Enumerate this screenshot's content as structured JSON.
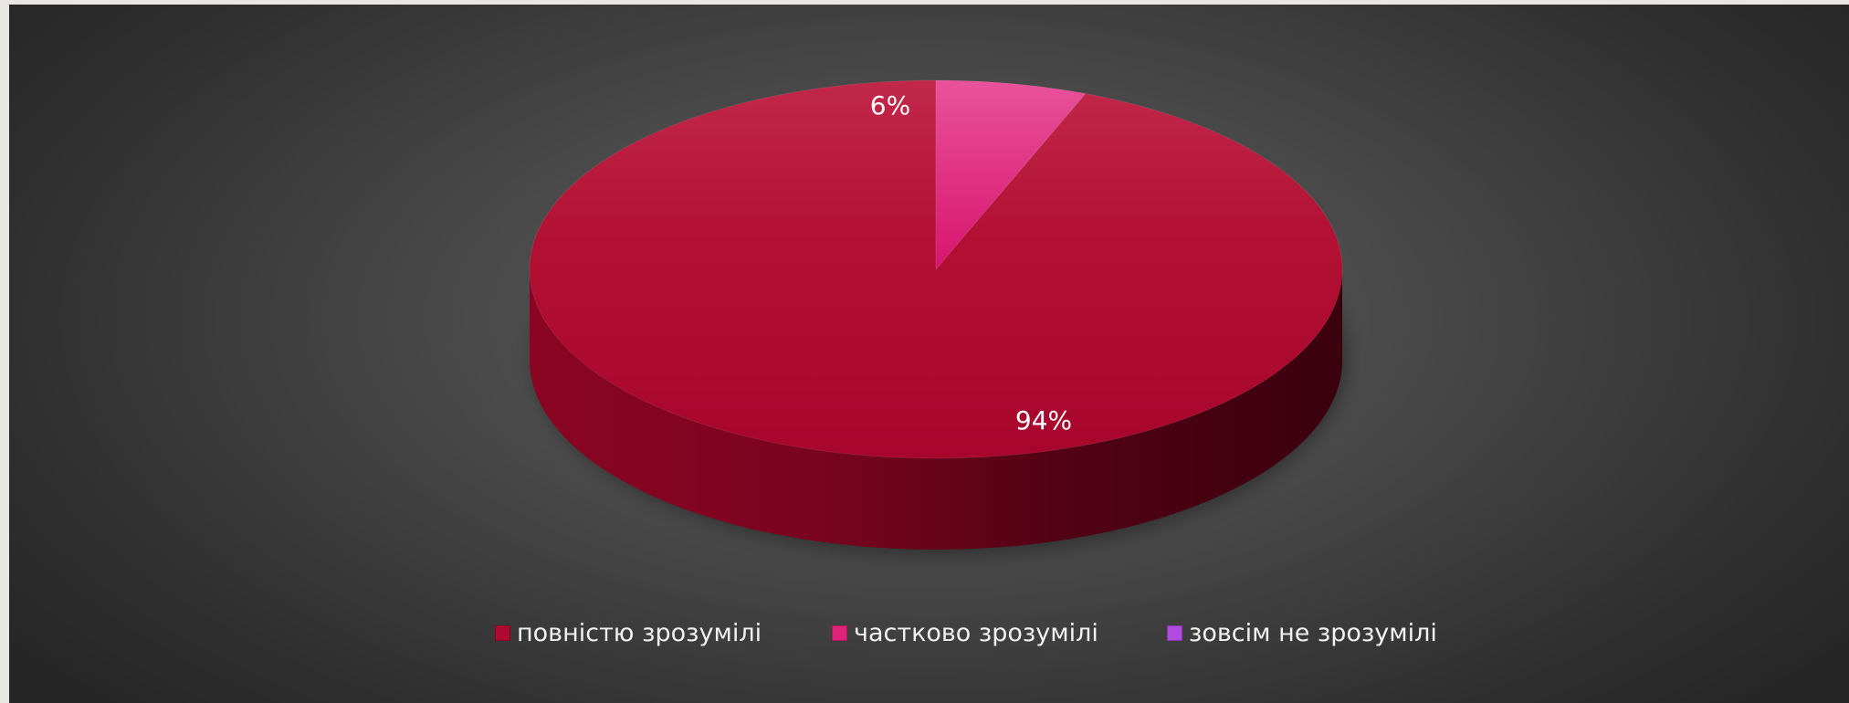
{
  "chart_data": {
    "type": "pie",
    "style": "3d",
    "title": "",
    "categories": [
      "повністю зрозумілі",
      "частково зрозумілі",
      "зовсім не зрозумілі"
    ],
    "values": [
      94,
      6,
      0
    ],
    "data_labels": [
      "94%",
      "6%",
      ""
    ],
    "colors": [
      "#b0092f",
      "#e0237a",
      "#b24be0"
    ],
    "legend_position": "bottom"
  },
  "legend": {
    "items": [
      {
        "label": "повністю зрозумілі",
        "color": "#b0092f"
      },
      {
        "label": "частково зрозумілі",
        "color": "#e0237a"
      },
      {
        "label": "зовсім не зрозумілі",
        "color": "#b24be0"
      }
    ]
  }
}
